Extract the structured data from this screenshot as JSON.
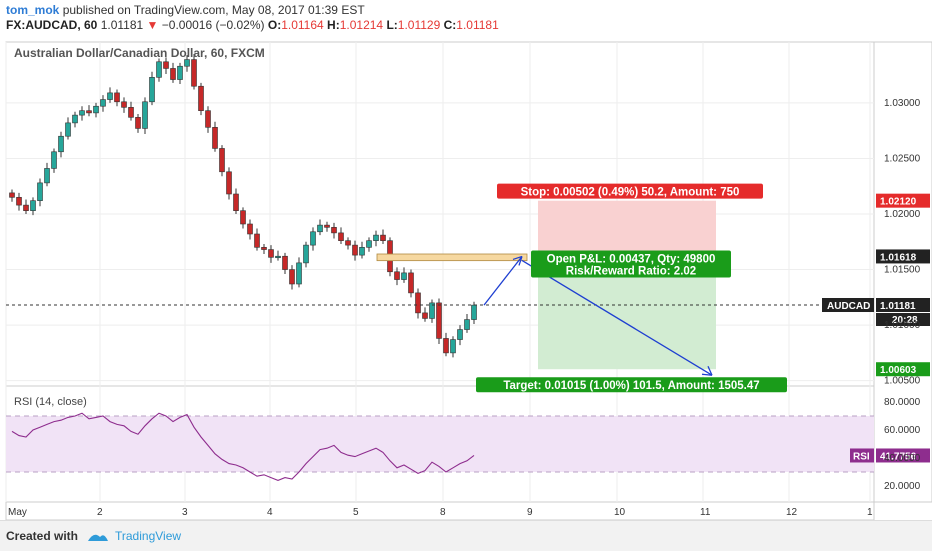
{
  "header": {
    "username": "tom_mok",
    "published": "published on TradingView.com, May 08, 2017 01:39 EST",
    "symbol": "FX:AUDCAD, 60",
    "last": "1.01181",
    "change_arrow": "▼",
    "change": "−0.00016 (−0.02%)",
    "o_label": "O:",
    "o_value": "1.01164",
    "h_label": "H:",
    "h_value": "1.01214",
    "l_label": "L:",
    "l_value": "1.01129",
    "c_label": "C:",
    "c_value": "1.01181"
  },
  "footer": {
    "created_with": "Created with",
    "brand": "TradingView",
    "logo_icon": "tradingview-logo-icon"
  },
  "colors": {
    "up": "#26a69a",
    "down": "#c62828",
    "candle_dark": "#333333",
    "stop_zone": "#f9d1d1",
    "target_zone": "#d2ecd2",
    "stop_label": "#e52b2b",
    "target_label": "#1a9c1a",
    "arrow": "#1e3fd1",
    "rsi_line": "#8e2d8e",
    "rsi_band": "#f1e3f6",
    "resistance_box": "#f6d8a0"
  },
  "chart_data": {
    "type": "candlestick",
    "title": "Australian Dollar/Canadian Dollar, 60, FXCM",
    "price_axis": {
      "ticks": [
        "1.03000",
        "1.02500",
        "1.02000",
        "1.01500",
        "1.01000",
        "1.00500"
      ],
      "ylim": [
        1.0047,
        1.0353
      ]
    },
    "time_axis": {
      "ticks": [
        "May",
        "2",
        "3",
        "4",
        "5",
        "8",
        "9",
        "10",
        "11",
        "12",
        "1"
      ]
    },
    "close_series": [
      1.0215,
      1.0208,
      1.0203,
      1.0212,
      1.0228,
      1.0241,
      1.0256,
      1.027,
      1.0282,
      1.0289,
      1.0293,
      1.0291,
      1.0297,
      1.0303,
      1.0309,
      1.0301,
      1.0296,
      1.0287,
      1.0277,
      1.0301,
      1.0323,
      1.0337,
      1.0331,
      1.0321,
      1.0333,
      1.0339,
      1.0315,
      1.0293,
      1.0278,
      1.0259,
      1.0238,
      1.0218,
      1.0203,
      1.0191,
      1.0182,
      1.017,
      1.0168,
      1.0161,
      1.0162,
      1.015,
      1.0137,
      1.0156,
      1.0172,
      1.0184,
      1.019,
      1.0188,
      1.0183,
      1.0176,
      1.0172,
      1.0163,
      1.017,
      1.0176,
      1.0181,
      1.0176,
      1.0148,
      1.0141,
      1.0147,
      1.0129,
      1.0111,
      1.0106,
      1.012,
      1.0088,
      1.0075,
      1.0087,
      1.0096,
      1.0105,
      1.0118
    ],
    "current_price_label": "AUDCAD",
    "current_price": "1.01181",
    "countdown": "20:28",
    "level_tags": [
      "1.02120",
      "1.01618",
      "1.00603"
    ],
    "position": {
      "entry": 1.01618,
      "stop": 1.0212,
      "target": 1.00603,
      "stop_text": "Stop: 0.00502 (0.49%) 50.2, Amount: 750",
      "pnl_text": "Open P&L: 0.00437, Qty: 49800",
      "rr_text": "Risk/Reward Ratio: 2.02",
      "target_text": "Target: 0.01015 (1.00%) 101.5, Amount: 1505.47"
    },
    "resistance_zone": [
      1.0158,
      1.0164
    ],
    "rsi": {
      "label": "RSI (14, close)",
      "tag": "RSI",
      "value": "41.7756",
      "ticks": [
        "80.0000",
        "60.0000",
        "40.0000",
        "20.0000"
      ],
      "ylim": [
        10,
        90
      ],
      "bands": [
        30,
        70
      ],
      "values": [
        59,
        56,
        55,
        60,
        62,
        64,
        66,
        67,
        69,
        70,
        72,
        68,
        69,
        70,
        66,
        64,
        63,
        59,
        57,
        63,
        68,
        72,
        70,
        66,
        69,
        71,
        62,
        55,
        49,
        43,
        39,
        36,
        35,
        33,
        30,
        27,
        28,
        26,
        24,
        26,
        25,
        30,
        36,
        41,
        46,
        47,
        49,
        44,
        42,
        41,
        43,
        45,
        47,
        44,
        38,
        33,
        35,
        32,
        29,
        31,
        37,
        34,
        30,
        33,
        36,
        38,
        41.8
      ]
    }
  }
}
